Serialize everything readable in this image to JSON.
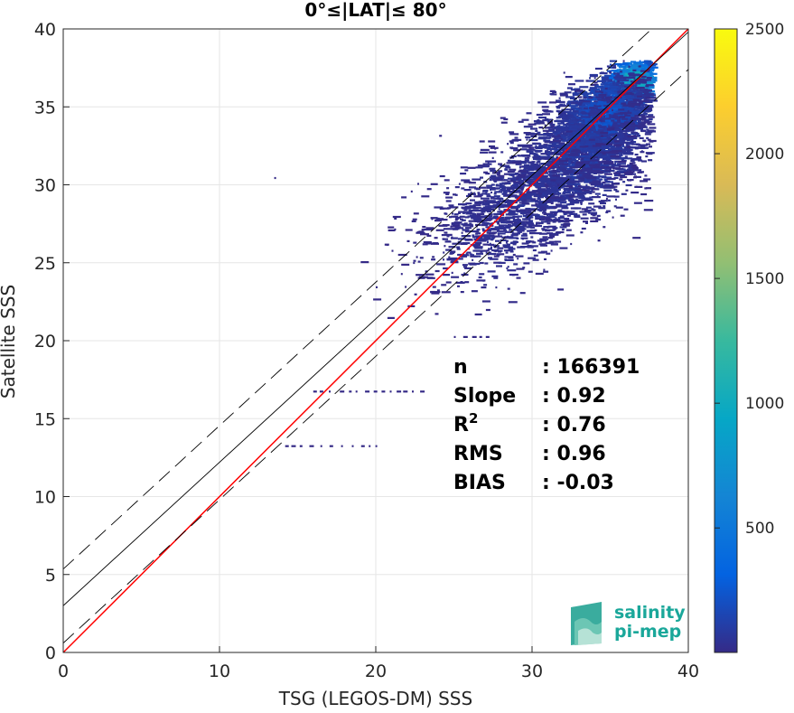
{
  "chart_data": {
    "type": "heatmap",
    "title": "0°≤|LAT|≤ 80°",
    "xlabel": "TSG (LEGOS-DM) SSS",
    "ylabel": "Satellite SSS",
    "xlim": [
      0,
      40
    ],
    "ylim": [
      0,
      40
    ],
    "xticks": [
      "0",
      "10",
      "20",
      "30",
      "40"
    ],
    "yticks": [
      "0",
      "5",
      "10",
      "15",
      "20",
      "25",
      "30",
      "35",
      "40"
    ],
    "grid": true,
    "colorbar": {
      "range": [
        1,
        2500
      ],
      "ticks": [
        "500",
        "1000",
        "1500",
        "2000",
        "2500"
      ],
      "tick_values": [
        500,
        1000,
        1500,
        2000,
        2500
      ],
      "colormap": "parula"
    },
    "lines": [
      {
        "kind": "one-to-one",
        "color": "#ff0000",
        "slope": 1.0,
        "intercept": 0.0
      },
      {
        "kind": "regression-fit",
        "color": "#000000",
        "slope": 0.92,
        "intercept": 3.0
      },
      {
        "kind": "fit-plus-2sigma",
        "color": "#000000",
        "dash": true,
        "slope": 0.92,
        "intercept": 5.35
      },
      {
        "kind": "fit-minus-2sigma",
        "color": "#000000",
        "dash": true,
        "slope": 0.92,
        "intercept": 0.6
      }
    ],
    "density_clusters": [
      {
        "x": 36.3,
        "y": 36.6,
        "sx": 0.9,
        "sy": 0.9,
        "n": 1200,
        "level": 0.55
      },
      {
        "x": 34.5,
        "y": 34.5,
        "sx": 1.6,
        "sy": 1.6,
        "n": 1800,
        "level": 0.12
      },
      {
        "x": 33.0,
        "y": 32.0,
        "sx": 2.4,
        "sy": 2.4,
        "n": 1500,
        "level": 0.05
      },
      {
        "x": 30.0,
        "y": 29.5,
        "sx": 3.0,
        "sy": 2.2,
        "n": 900,
        "level": 0.03
      },
      {
        "x": 27.5,
        "y": 27.0,
        "sx": 2.8,
        "sy": 2.5,
        "n": 500,
        "level": 0.02
      }
    ],
    "stats": [
      {
        "label": "n",
        "value": ": 166391"
      },
      {
        "label": "Slope",
        "value": ": 0.92"
      },
      {
        "label": "R",
        "sup": "2",
        "value": ": 0.76"
      },
      {
        "label": "RMS",
        "value": ": 0.96"
      },
      {
        "label": "BIAS",
        "value": ": -0.03"
      }
    ]
  },
  "logo": {
    "line1": "salinity",
    "line2": "pi-mep"
  }
}
